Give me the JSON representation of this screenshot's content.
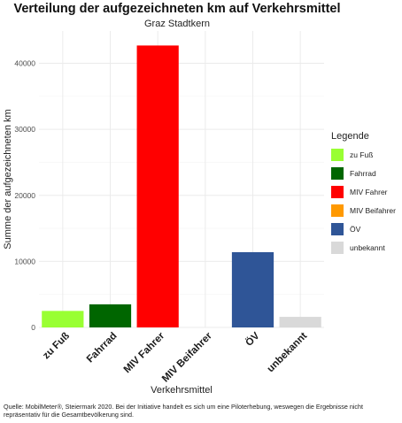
{
  "chart_data": {
    "type": "bar",
    "title": "Verteilung der aufgezeichneten km auf Verkehrsmittel",
    "subtitle": "Graz Stadtkern",
    "xlabel": "Verkehrsmittel",
    "ylabel": "Summe der aufgezeichneten km",
    "categories": [
      "zu Fuß",
      "Fahrrad",
      "MIV Fahrer",
      "MIV Beifahrer",
      "ÖV",
      "unbekannt"
    ],
    "values": [
      2500,
      3500,
      42700,
      0,
      11400,
      1600
    ],
    "colors": [
      "#99ff33",
      "#006600",
      "#ff0000",
      "#ff9900",
      "#2f5597",
      "#d9d9d9"
    ],
    "ylim": [
      0,
      44900
    ],
    "yticks": [
      0,
      10000,
      20000,
      30000,
      40000
    ],
    "grid": true,
    "legend": {
      "title": "Legende",
      "position": "right",
      "entries": [
        "zu Fuß",
        "Fahrrad",
        "MIV Fahrer",
        "MIV Beifahrer",
        "ÖV",
        "unbekannt"
      ]
    }
  },
  "caption": "Quelle: MobilMeter®, Steiermark 2020. Bei der Initiative handelt es sich um eine Piloterhebung, weswegen die Ergebnisse nicht repräsentativ für die Gesamtbevölkerung sind."
}
